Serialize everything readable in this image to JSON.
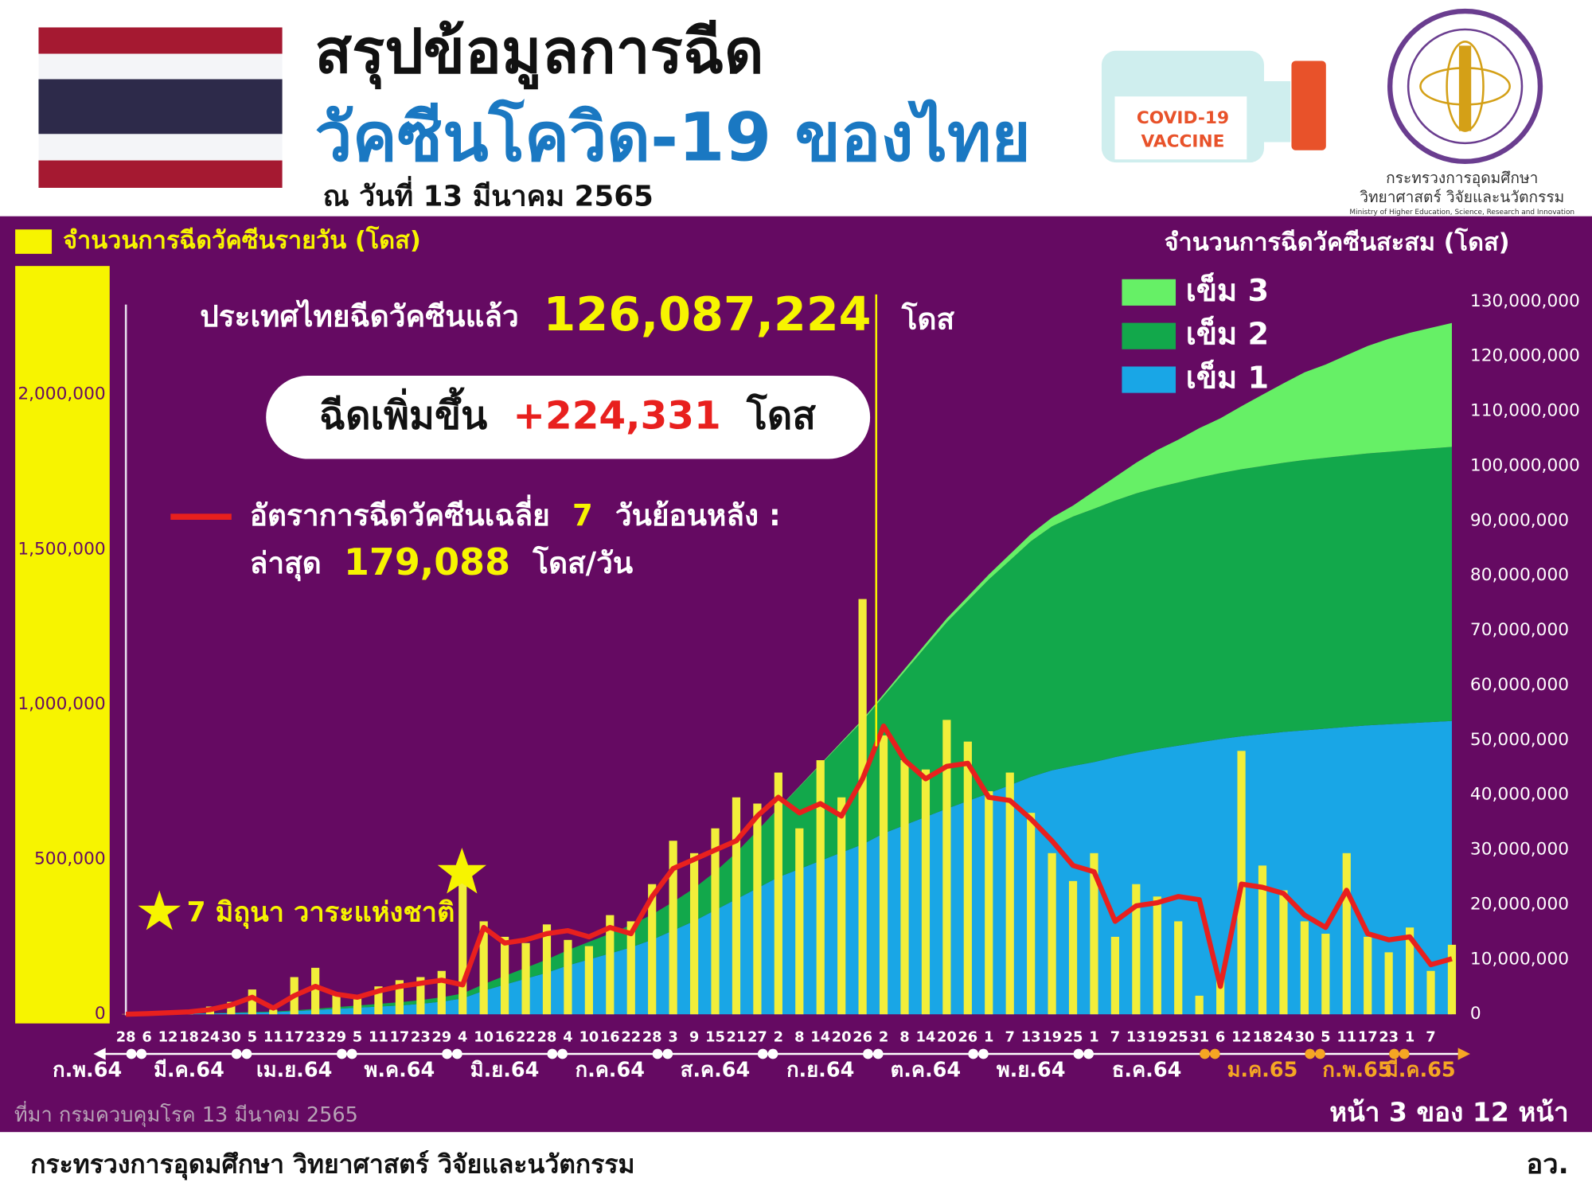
{
  "header": {
    "title_line1": "สรุปข้อมูลการฉีด",
    "title_line2": "วัคซีนโควิด-19 ของไทย",
    "date": "ณ วันที่ 13 มีนาคม 2565",
    "vaccine_label": [
      "COVID-19",
      "VACCINE"
    ],
    "ministry_logo_text": [
      "กระทรวงการอุดมศึกษา",
      "วิทยาศาสตร์ วิจัยและนวัตกรรม",
      "Ministry of Higher Education, Science, Research and Innovation"
    ]
  },
  "chart_data": {
    "type": "combo",
    "y_title": "จำนวนการฉีดวัคซีนรายวัน (โดส)",
    "y2_title": "จำนวนการฉีดวัคซีนสะสม (โดส)",
    "headline": {
      "text": "ประเทศไทยฉีดวัคซีนแล้ว",
      "number": "126,087,224",
      "unit": "โดส"
    },
    "increase": {
      "text": "ฉีดเพิ่มขึ้น",
      "number": "+224,331",
      "unit": "โดส"
    },
    "average_note": {
      "text1": "อัตราการฉีดวัคซีนเฉลี่ย",
      "days": "7",
      "text2": "วันย้อนหลัง :",
      "latest": "ล่าสุด",
      "number": "179,088",
      "unit": "โดส/วัน"
    },
    "star_note": "7 มิถุนา วาระแห่งชาติ",
    "categories": [
      "28",
      "6",
      "12",
      "18",
      "24",
      "30",
      "5",
      "11",
      "17",
      "23",
      "29",
      "5",
      "11",
      "17",
      "23",
      "29",
      "4",
      "10",
      "16",
      "22",
      "28",
      "4",
      "10",
      "16",
      "22",
      "28",
      "3",
      "9",
      "15",
      "21",
      "27",
      "2",
      "8",
      "14",
      "20",
      "26",
      "2",
      "8",
      "14",
      "20",
      "26",
      "1",
      "7",
      "13",
      "19",
      "25",
      "1",
      "7",
      "13",
      "19",
      "25",
      "31",
      "6",
      "12",
      "18",
      "24",
      "30",
      "5",
      "11",
      "17",
      "23",
      "1",
      "7",
      null
    ],
    "months": [
      {
        "label": "ก.พ.64",
        "color": "#ffffff"
      },
      {
        "label": "มี.ค.64",
        "color": "#ffffff"
      },
      {
        "label": "เม.ย.64",
        "color": "#ffffff"
      },
      {
        "label": "พ.ค.64",
        "color": "#ffffff"
      },
      {
        "label": "มิ.ย.64",
        "color": "#ffffff"
      },
      {
        "label": "ก.ค.64",
        "color": "#ffffff"
      },
      {
        "label": "ส.ค.64",
        "color": "#ffffff"
      },
      {
        "label": "ก.ย.64",
        "color": "#ffffff"
      },
      {
        "label": "ต.ค.64",
        "color": "#ffffff"
      },
      {
        "label": "พ.ย.64",
        "color": "#ffffff"
      },
      {
        "label": "ธ.ค.64",
        "color": "#ffffff"
      },
      {
        "label": "ม.ค.65",
        "color": "#f5a623"
      },
      {
        "label": "ก.พ.65",
        "color": "#f5a623"
      },
      {
        "label": "มี.ค.65",
        "color": "#f5a623"
      }
    ],
    "series": [
      {
        "name": "จำนวนการฉีดวัคซีนรายวัน (โดส)",
        "type": "bar",
        "axis": "y",
        "color": "#f2ee3a",
        "values": [
          1000,
          3000,
          6000,
          10000,
          25000,
          40000,
          80000,
          15000,
          120000,
          150000,
          70000,
          60000,
          90000,
          110000,
          120000,
          140000,
          430000,
          300000,
          250000,
          230000,
          290000,
          240000,
          220000,
          320000,
          300000,
          420000,
          560000,
          520000,
          600000,
          700000,
          680000,
          780000,
          600000,
          820000,
          700000,
          1340000,
          900000,
          820000,
          790000,
          950000,
          880000,
          720000,
          780000,
          650000,
          520000,
          430000,
          520000,
          250000,
          420000,
          380000,
          300000,
          60000,
          120000,
          850000,
          480000,
          400000,
          300000,
          260000,
          520000,
          250000,
          200000,
          280000,
          140000,
          224331
        ]
      },
      {
        "name": "อัตราการฉีดวัคซีนเฉลี่ย",
        "type": "line",
        "axis": "y",
        "color": "#e8201e",
        "values": [
          0,
          2000,
          5000,
          8000,
          15000,
          30000,
          55000,
          20000,
          60000,
          90000,
          65000,
          55000,
          75000,
          90000,
          100000,
          110000,
          95000,
          280000,
          230000,
          240000,
          260000,
          270000,
          250000,
          280000,
          260000,
          380000,
          470000,
          500000,
          530000,
          560000,
          640000,
          700000,
          650000,
          680000,
          640000,
          760000,
          930000,
          820000,
          760000,
          800000,
          810000,
          700000,
          690000,
          630000,
          560000,
          480000,
          460000,
          300000,
          350000,
          360000,
          380000,
          370000,
          90000,
          420000,
          410000,
          390000,
          320000,
          280000,
          400000,
          260000,
          240000,
          250000,
          160000,
          179088
        ]
      },
      {
        "name": "เข็ม 1",
        "type": "area",
        "axis": "y2",
        "color": "#19a6e6",
        "values": [
          0,
          50000,
          100000,
          120000,
          150000,
          220000,
          300000,
          380000,
          550000,
          800000,
          1000000,
          1200000,
          1400000,
          1600000,
          1900000,
          2300000,
          2900000,
          4300000,
          5400000,
          6500000,
          7600000,
          8900000,
          10000000,
          11100000,
          12200000,
          13600000,
          15300000,
          17000000,
          19000000,
          21000000,
          23000000,
          25000000,
          26500000,
          28000000,
          29500000,
          31000000,
          33000000,
          34500000,
          36000000,
          37500000,
          38900000,
          40300000,
          41800000,
          43300000,
          44500000,
          45300000,
          46000000,
          46900000,
          47700000,
          48400000,
          49000000,
          49600000,
          50200000,
          50700000,
          51100000,
          51500000,
          51800000,
          52100000,
          52400000,
          52700000,
          52900000,
          53100000,
          53300000,
          53500000
        ]
      },
      {
        "name": "เข็ม 2",
        "type": "area",
        "axis": "y2",
        "color": "#12a84b",
        "values": [
          0,
          0,
          0,
          30000,
          50000,
          80000,
          100000,
          120000,
          150000,
          200000,
          300000,
          400000,
          500000,
          600000,
          700000,
          800000,
          900000,
          1200000,
          1600000,
          2000000,
          2400000,
          2800000,
          3200000,
          3600000,
          4100000,
          4600000,
          5200000,
          6000000,
          7000000,
          8500000,
          10500000,
          12500000,
          15000000,
          17500000,
          20000000,
          22500000,
          25000000,
          28000000,
          31000000,
          34000000,
          36500000,
          39000000,
          41000000,
          43000000,
          44500000,
          45500000,
          46200000,
          46800000,
          47300000,
          47700000,
          48000000,
          48300000,
          48500000,
          48700000,
          48900000,
          49100000,
          49300000,
          49400000,
          49500000,
          49600000,
          49700000,
          49800000,
          49900000,
          50000000
        ]
      },
      {
        "name": "เข็ม 3",
        "type": "area",
        "axis": "y2",
        "color": "#66f066",
        "values": [
          0,
          0,
          0,
          0,
          0,
          0,
          0,
          0,
          0,
          0,
          0,
          0,
          0,
          0,
          0,
          0,
          0,
          0,
          0,
          0,
          0,
          0,
          0,
          0,
          0,
          0,
          0,
          0,
          0,
          0,
          0,
          50000,
          100000,
          150000,
          200000,
          300000,
          400000,
          500000,
          600000,
          700000,
          800000,
          900000,
          1100000,
          1300000,
          1600000,
          2000000,
          3200000,
          4300000,
          5600000,
          6800000,
          7800000,
          9000000,
          10000000,
          11500000,
          13000000,
          14500000,
          16000000,
          17000000,
          18300000,
          19600000,
          20600000,
          21400000,
          22000000,
          22587224
        ]
      }
    ],
    "legend_order": [
      4,
      3,
      2
    ],
    "ylim": [
      0,
      2300000
    ],
    "yticks": [
      0,
      {
        "value": 500000,
        "label": "500,000"
      },
      {
        "value": 1000000,
        "label": "1,000,000"
      },
      {
        "value": 1500000,
        "label": "1,500,000"
      },
      {
        "value": 2000000,
        "label": "2,000,000"
      }
    ],
    "y2lim": [
      0,
      130000000
    ],
    "y2ticks": [
      0,
      {
        "value": 10000000,
        "label": "10,000,000"
      },
      {
        "value": 20000000,
        "label": "20,000,000"
      },
      {
        "value": 30000000,
        "label": "30,000,000"
      },
      {
        "value": 40000000,
        "label": "40,000,000"
      },
      {
        "value": 50000000,
        "label": "50,000,000"
      },
      {
        "value": 60000000,
        "label": "60,000,000"
      },
      {
        "value": 70000000,
        "label": "70,000,000"
      },
      {
        "value": 80000000,
        "label": "80,000,000"
      },
      {
        "value": 90000000,
        "label": "90,000,000"
      },
      {
        "value": 100000000,
        "label": "100,000,000"
      },
      {
        "value": 110000000,
        "label": "110,000,000"
      },
      {
        "value": 120000000,
        "label": "120,000,000"
      },
      {
        "value": 130000000,
        "label": "130,000,000"
      }
    ]
  },
  "footer": {
    "source": "ที่มา กรมควบคุมโรค 13 มีนาคม 2565",
    "page": "หน้า 3 ของ 12 หน้า",
    "ministry": "กระทรวงการอุดมศึกษา วิทยาศาสตร์ วิจัยและนวัตกรรม",
    "abbreviation": "อว."
  }
}
